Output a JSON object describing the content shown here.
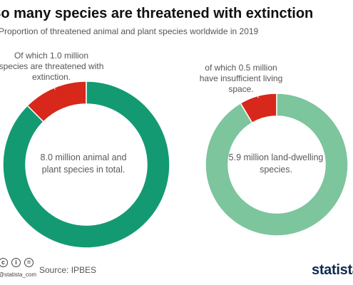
{
  "header": {
    "title": "So many species are threatened with extinction",
    "subtitle": "Proportion of threatened animal and plant species worldwide in 2019"
  },
  "chart_data": [
    {
      "type": "pie",
      "variant": "donut",
      "center_label": "8.0 million animal and plant species in total.",
      "annotation": "Of which 1.0 million species are threatened with extinction.",
      "slices": [
        {
          "value": 1.0,
          "color": "#d7281b"
        },
        {
          "value": 7.0,
          "color": "#139a72"
        }
      ]
    },
    {
      "type": "pie",
      "variant": "donut",
      "center_label": "5.9 million land-dwelling species.",
      "annotation": "of which 0.5 million have insufficient living space.",
      "slices": [
        {
          "value": 0.5,
          "color": "#d7281b"
        },
        {
          "value": 5.4,
          "color": "#7dc59d"
        }
      ]
    }
  ],
  "footer": {
    "icons": [
      "cc-icon",
      "by-icon",
      "nd-icon"
    ],
    "icon_glyphs": [
      "c",
      "i",
      "="
    ],
    "handle": "@statista_com",
    "source": "Source: IPBES",
    "logo": "statista"
  }
}
